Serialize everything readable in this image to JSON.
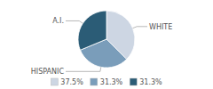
{
  "chart_data": {
    "type": "pie",
    "categories": [
      "WHITE",
      "HISPANIC",
      "A.I."
    ],
    "values": [
      37.5,
      31.3,
      31.3
    ],
    "value_labels": [
      "37.5%",
      "31.3%",
      "31.3%"
    ],
    "colors": [
      "#cdd6e3",
      "#7a9dba",
      "#2b5c76"
    ],
    "legend": "bottom"
  }
}
